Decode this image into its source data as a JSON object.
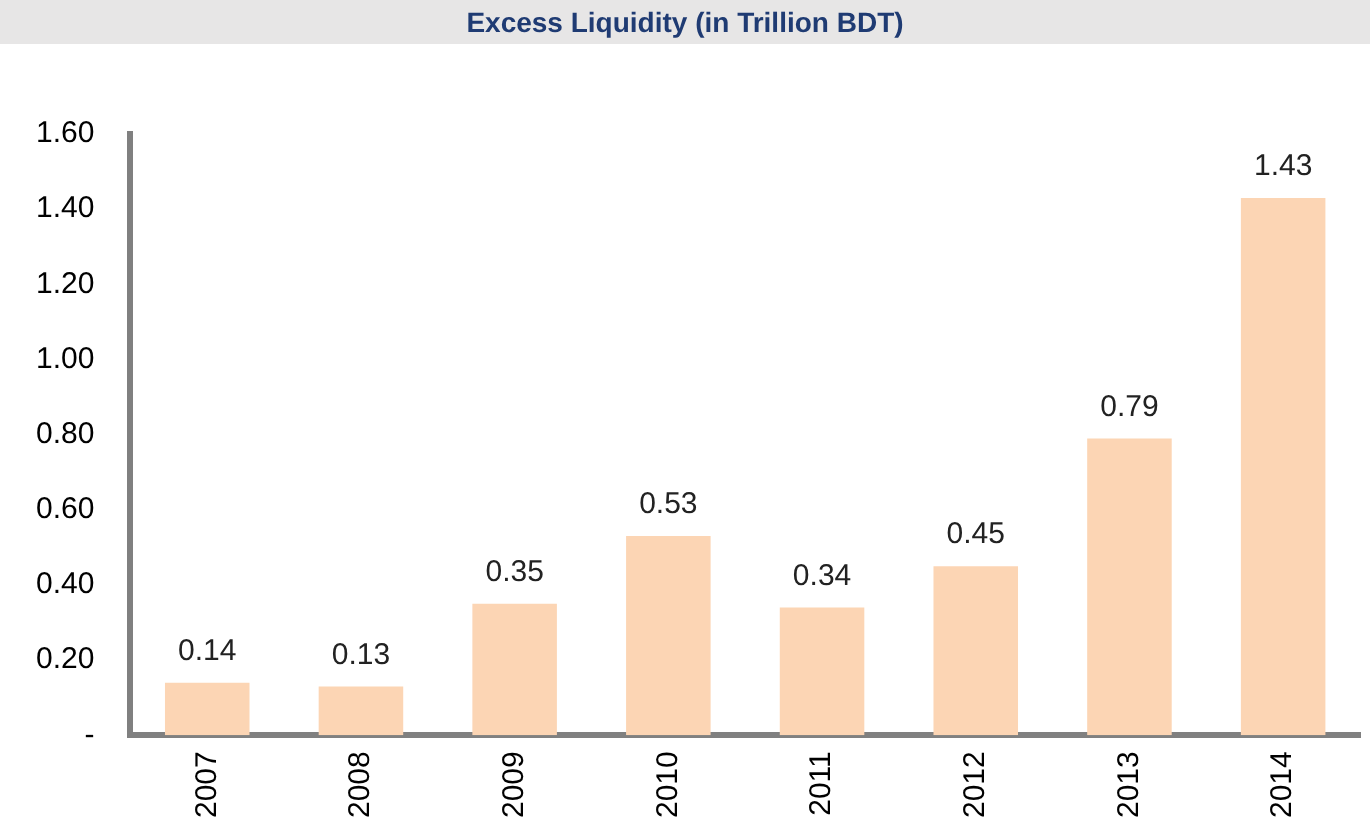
{
  "chart_data": {
    "type": "bar",
    "title": "Excess Liquidity (in Trillion BDT)",
    "categories": [
      "2007",
      "2008",
      "2009",
      "2010",
      "2011",
      "2012",
      "2013",
      "2014"
    ],
    "values": [
      0.14,
      0.13,
      0.35,
      0.53,
      0.34,
      0.45,
      0.79,
      1.43
    ],
    "color": "#fcd5b4",
    "ylim": [
      0,
      1.6
    ],
    "yticks": [
      {
        "value": 0,
        "label": "-"
      },
      {
        "value": 0.2,
        "label": "0.20"
      },
      {
        "value": 0.4,
        "label": "0.40"
      },
      {
        "value": 0.6,
        "label": "0.60"
      },
      {
        "value": 0.8,
        "label": "0.80"
      },
      {
        "value": 1,
        "label": "1.00"
      },
      {
        "value": 1.2,
        "label": "1.20"
      },
      {
        "value": 1.4,
        "label": "1.40"
      },
      {
        "value": 1.6,
        "label": "1.60"
      }
    ],
    "grid": false,
    "legend": false,
    "data_labels": true
  }
}
